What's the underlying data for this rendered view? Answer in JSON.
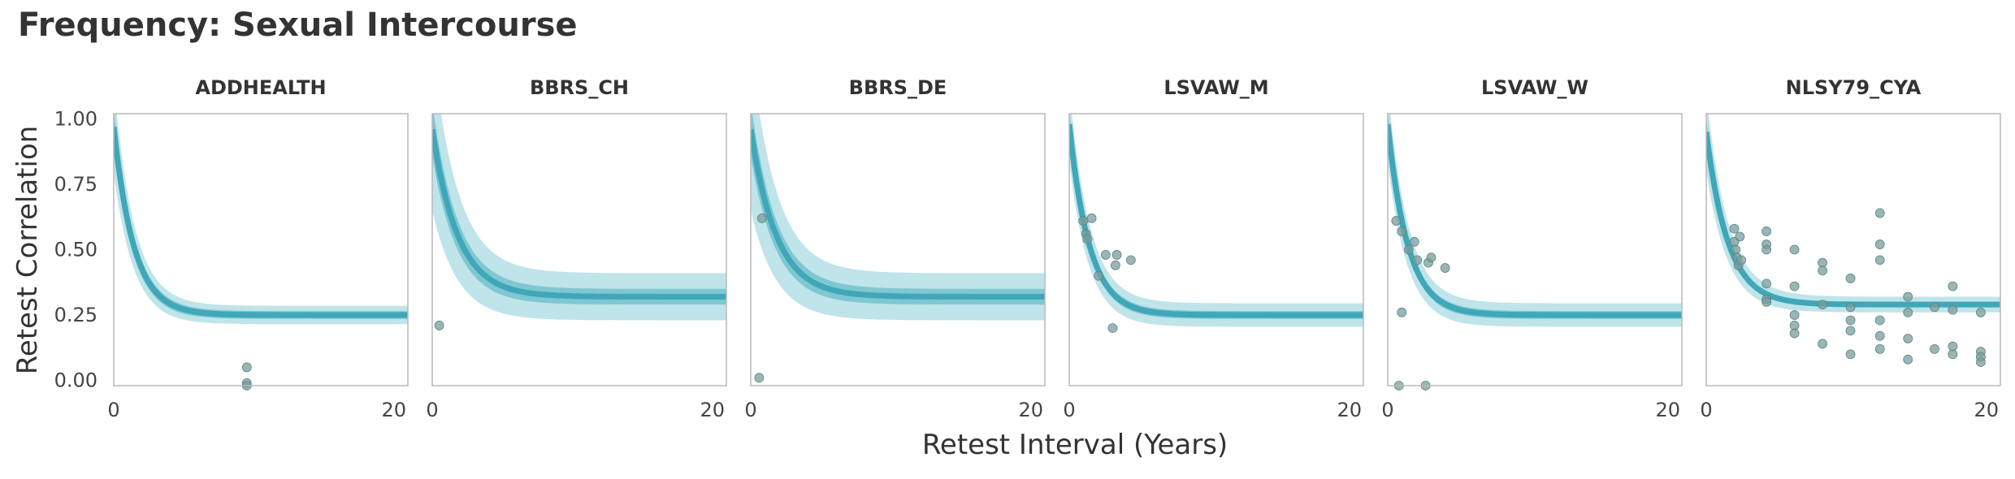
{
  "figure": {
    "title": "Frequency: Sexual Intercourse",
    "ylabel": "Retest Correlation",
    "xlabel": "Retest Interval (Years)"
  },
  "colors": {
    "curve": "#3fa7b8",
    "band_inner": "#6fbfcc",
    "band_outer": "#a9dbe3",
    "points": "#7a9c9c",
    "frame": "#b9b9b9"
  },
  "chart_data": [
    {
      "type": "line",
      "title": "ADDHEALTH",
      "xlim": [
        0,
        21
      ],
      "ylim": [
        -0.02,
        1.02
      ],
      "xticks": [
        0,
        20
      ],
      "yticks": [
        0.0,
        0.25,
        0.5,
        0.75,
        1.0
      ],
      "ytick_labels": [
        "0.00",
        "0.25",
        "0.50",
        "0.75",
        "1.00"
      ],
      "curve": {
        "start": 0.97,
        "asymptote": 0.25,
        "rate": 0.7,
        "band_inner": 0.015,
        "band_outer": 0.035,
        "spread_start": 0.14
      },
      "points": [
        [
          9.5,
          0.05
        ],
        [
          9.5,
          -0.01
        ],
        [
          9.5,
          -0.02
        ]
      ]
    },
    {
      "type": "line",
      "title": "BBRS_CH",
      "xlim": [
        0,
        21
      ],
      "ylim": [
        -0.02,
        1.02
      ],
      "xticks": [
        0,
        20
      ],
      "yticks": [
        0.0,
        0.25,
        0.5,
        0.75,
        1.0
      ],
      "curve": {
        "start": 0.96,
        "asymptote": 0.32,
        "rate": 0.55,
        "band_inner": 0.03,
        "band_outer": 0.09,
        "spread_start": 0.22
      },
      "points": [
        [
          0.5,
          0.21
        ]
      ]
    },
    {
      "type": "line",
      "title": "BBRS_DE",
      "xlim": [
        0,
        21
      ],
      "ylim": [
        -0.02,
        1.02
      ],
      "xticks": [
        0,
        20
      ],
      "yticks": [
        0.0,
        0.25,
        0.5,
        0.75,
        1.0
      ],
      "curve": {
        "start": 0.96,
        "asymptote": 0.32,
        "rate": 0.55,
        "band_inner": 0.03,
        "band_outer": 0.09,
        "spread_start": 0.22
      },
      "points": [
        [
          0.8,
          0.62
        ],
        [
          0.6,
          0.01
        ]
      ]
    },
    {
      "type": "line",
      "title": "LSVAW_M",
      "xlim": [
        0,
        21
      ],
      "ylim": [
        -0.02,
        1.02
      ],
      "xticks": [
        0,
        20
      ],
      "yticks": [
        0.0,
        0.25,
        0.5,
        0.75,
        1.0
      ],
      "curve": {
        "start": 0.98,
        "asymptote": 0.25,
        "rate": 0.7,
        "band_inner": 0.015,
        "band_outer": 0.045,
        "spread_start": 0.1
      },
      "points": [
        [
          1.0,
          0.61
        ],
        [
          1.2,
          0.56
        ],
        [
          1.3,
          0.54
        ],
        [
          1.6,
          0.62
        ],
        [
          2.1,
          0.4
        ],
        [
          2.6,
          0.48
        ],
        [
          3.1,
          0.2
        ],
        [
          3.3,
          0.44
        ],
        [
          3.4,
          0.48
        ],
        [
          4.4,
          0.46
        ]
      ]
    },
    {
      "type": "line",
      "title": "LSVAW_W",
      "xlim": [
        0,
        21
      ],
      "ylim": [
        -0.02,
        1.02
      ],
      "xticks": [
        0,
        20
      ],
      "yticks": [
        0.0,
        0.25,
        0.5,
        0.75,
        1.0
      ],
      "curve": {
        "start": 0.98,
        "asymptote": 0.25,
        "rate": 0.7,
        "band_inner": 0.015,
        "band_outer": 0.045,
        "spread_start": 0.1
      },
      "points": [
        [
          0.6,
          0.61
        ],
        [
          0.8,
          -0.02
        ],
        [
          1.0,
          0.57
        ],
        [
          1.0,
          0.26
        ],
        [
          1.5,
          0.5
        ],
        [
          1.9,
          0.53
        ],
        [
          2.1,
          0.46
        ],
        [
          2.7,
          -0.02
        ],
        [
          2.9,
          0.45
        ],
        [
          3.1,
          0.47
        ],
        [
          4.1,
          0.43
        ]
      ]
    },
    {
      "type": "line",
      "title": "NLSY79_CYA",
      "xlim": [
        0,
        21
      ],
      "ylim": [
        -0.02,
        1.02
      ],
      "xticks": [
        0,
        20
      ],
      "yticks": [
        0.0,
        0.25,
        0.5,
        0.75,
        1.0
      ],
      "curve": {
        "start": 0.95,
        "asymptote": 0.29,
        "rate": 0.65,
        "band_inner": 0.01,
        "band_outer": 0.03,
        "spread_start": 0.12
      },
      "points": [
        [
          2.0,
          0.58
        ],
        [
          2.0,
          0.53
        ],
        [
          2.1,
          0.5
        ],
        [
          2.2,
          0.47
        ],
        [
          2.3,
          0.44
        ],
        [
          2.4,
          0.55
        ],
        [
          2.5,
          0.46
        ],
        [
          4.3,
          0.57
        ],
        [
          4.3,
          0.52
        ],
        [
          4.3,
          0.5
        ],
        [
          4.3,
          0.37
        ],
        [
          4.3,
          0.31
        ],
        [
          4.3,
          0.3
        ],
        [
          6.3,
          0.5
        ],
        [
          6.3,
          0.36
        ],
        [
          6.3,
          0.25
        ],
        [
          6.3,
          0.21
        ],
        [
          6.3,
          0.18
        ],
        [
          8.3,
          0.45
        ],
        [
          8.3,
          0.42
        ],
        [
          8.3,
          0.29
        ],
        [
          8.3,
          0.14
        ],
        [
          10.3,
          0.39
        ],
        [
          10.3,
          0.28
        ],
        [
          10.3,
          0.23
        ],
        [
          10.3,
          0.19
        ],
        [
          10.3,
          0.1
        ],
        [
          12.4,
          0.64
        ],
        [
          12.4,
          0.52
        ],
        [
          12.4,
          0.46
        ],
        [
          12.4,
          0.23
        ],
        [
          12.4,
          0.17
        ],
        [
          12.4,
          0.12
        ],
        [
          14.4,
          0.32
        ],
        [
          14.4,
          0.26
        ],
        [
          14.4,
          0.16
        ],
        [
          14.4,
          0.08
        ],
        [
          16.3,
          0.28
        ],
        [
          16.3,
          0.12
        ],
        [
          17.6,
          0.36
        ],
        [
          17.6,
          0.27
        ],
        [
          17.6,
          0.13
        ],
        [
          17.6,
          0.1
        ],
        [
          19.6,
          0.26
        ],
        [
          19.6,
          0.11
        ],
        [
          19.6,
          0.09
        ],
        [
          19.6,
          0.07
        ]
      ]
    }
  ]
}
